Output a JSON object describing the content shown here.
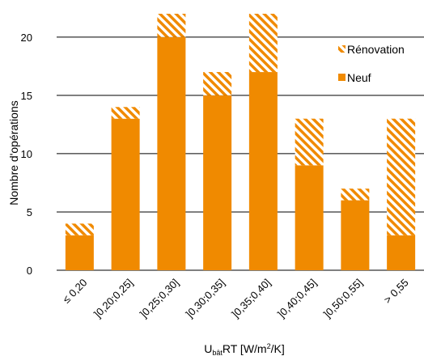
{
  "chart_data": {
    "type": "bar",
    "stacked": true,
    "categories": [
      "≤ 0,20",
      "]0,20;0,25]",
      "]0,25;0,30]",
      "]0,30;0,35]",
      "]0,35;0,40]",
      "]0,40;0,45]",
      "]0,50;0,55]",
      "> 0,55"
    ],
    "series": [
      {
        "name": "Neuf",
        "values": [
          3,
          13,
          20,
          15,
          17,
          9,
          6,
          3
        ],
        "color": "#F08A00",
        "pattern": "solid"
      },
      {
        "name": "Rénovation",
        "values": [
          1,
          1,
          2,
          2,
          5,
          4,
          1,
          10
        ],
        "color": "#F08A00",
        "pattern": "hatch"
      }
    ],
    "ylabel": "Nombre d'opérations",
    "xlabel": {
      "prefix": "U",
      "subscript": "bât",
      "middle": "RT [W/m",
      "superscript": "2",
      "suffix": "/K]"
    },
    "ylim": [
      0,
      22
    ],
    "yticks": [
      0,
      5,
      10,
      15,
      20
    ],
    "ytick_labels": [
      "0",
      "5",
      "10",
      "15",
      "20"
    ],
    "grid": "horizontal",
    "legend_position": "top-right",
    "legend_order": [
      "Rénovation",
      "Neuf"
    ]
  }
}
